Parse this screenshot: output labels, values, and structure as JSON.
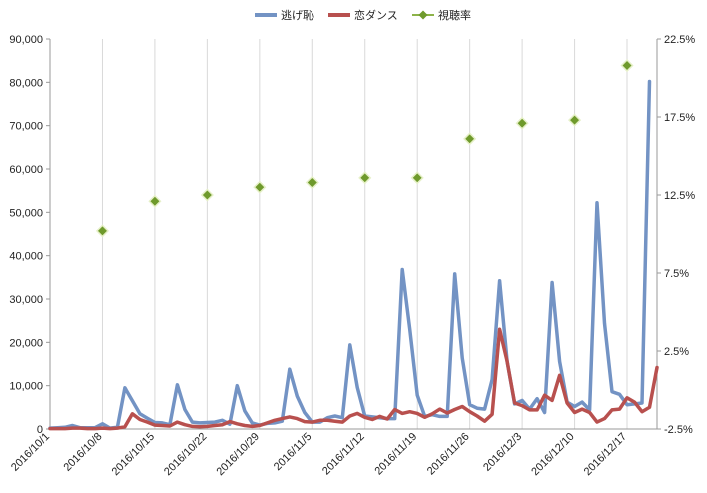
{
  "chart_data": {
    "type": "line",
    "legend_position": "top",
    "grid": {
      "x": true,
      "y": false
    },
    "legend": [
      {
        "name": "逃げ恥",
        "color": "#7393c4",
        "marker": "line"
      },
      {
        "name": "恋ダンス",
        "color": "#b8504e",
        "marker": "line"
      },
      {
        "name": "視聴率",
        "color": "#6f9a2c",
        "marker": "diamond"
      }
    ],
    "x_ticks": [
      "2016/10/1",
      "2016/10/8",
      "2016/10/15",
      "2016/10/22",
      "2016/10/29",
      "2016/11/5",
      "2016/11/12",
      "2016/11/19",
      "2016/11/26",
      "2016/12/3",
      "2016/12/10",
      "2016/12/17"
    ],
    "x_range_days": [
      0,
      81
    ],
    "left_axis": {
      "ylim": [
        0,
        90000
      ],
      "ticks": [
        "0",
        "10,000",
        "20,000",
        "30,000",
        "40,000",
        "50,000",
        "60,000",
        "70,000",
        "80,000",
        "90,000"
      ]
    },
    "right_axis": {
      "ylim": [
        -2.5,
        22.5
      ],
      "ticks": [
        "-2.5%",
        "2.5%",
        "7.5%",
        "12.5%",
        "17.5%",
        "22.5%"
      ]
    },
    "series": [
      {
        "name": "逃げ恥",
        "axis": "left",
        "color": "#7393c4",
        "x": [
          0,
          1,
          2,
          3,
          4,
          5,
          6,
          7,
          8,
          9,
          10,
          11,
          12,
          13,
          14,
          15,
          16,
          17,
          18,
          19,
          20,
          21,
          22,
          23,
          24,
          25,
          26,
          27,
          28,
          29,
          30,
          31,
          32,
          33,
          34,
          35,
          36,
          37,
          38,
          39,
          40,
          41,
          42,
          43,
          44,
          45,
          46,
          47,
          48,
          49,
          50,
          51,
          52,
          53,
          54,
          55,
          56,
          57,
          58,
          59,
          60,
          61,
          62,
          63,
          64,
          65,
          66,
          67,
          68,
          69,
          70,
          71,
          72,
          73,
          74,
          75,
          76,
          77,
          78,
          79,
          80
        ],
        "values": [
          200,
          300,
          400,
          800,
          300,
          300,
          300,
          1200,
          200,
          400,
          9500,
          6500,
          3500,
          2500,
          1500,
          1400,
          1000,
          10200,
          4500,
          1600,
          1400,
          1500,
          1600,
          2000,
          1100,
          10000,
          4200,
          1400,
          900,
          1300,
          1400,
          1800,
          13800,
          7600,
          3800,
          1600,
          1600,
          2600,
          3000,
          2600,
          19400,
          9600,
          3000,
          2800,
          2600,
          2400,
          2400,
          36800,
          23000,
          7800,
          2900,
          3300,
          2900,
          2900,
          35800,
          16400,
          5600,
          4800,
          4600,
          11400,
          34200,
          15600,
          5800,
          6600,
          4600,
          7000,
          3800,
          33800,
          15600,
          6200,
          5200,
          6200,
          4400,
          52200,
          24400,
          8600,
          8000,
          5600,
          5800,
          6000,
          80200
        ]
      },
      {
        "name": "恋ダンス",
        "axis": "left",
        "color": "#b8504e",
        "x": [
          0,
          1,
          2,
          3,
          4,
          5,
          6,
          7,
          8,
          9,
          10,
          11,
          12,
          13,
          14,
          15,
          16,
          17,
          18,
          19,
          20,
          21,
          22,
          23,
          24,
          25,
          26,
          27,
          28,
          29,
          30,
          31,
          32,
          33,
          34,
          35,
          36,
          37,
          38,
          39,
          40,
          41,
          42,
          43,
          44,
          45,
          46,
          47,
          48,
          49,
          50,
          51,
          52,
          53,
          54,
          55,
          56,
          57,
          58,
          59,
          60,
          61,
          62,
          63,
          64,
          65,
          66,
          67,
          68,
          69,
          70,
          71,
          72,
          73,
          74,
          75,
          76,
          77,
          78,
          79,
          80,
          81
        ],
        "values": [
          100,
          100,
          100,
          200,
          200,
          100,
          100,
          200,
          100,
          200,
          500,
          3500,
          2200,
          1600,
          900,
          800,
          700,
          1600,
          1000,
          600,
          500,
          600,
          800,
          1000,
          1700,
          1200,
          800,
          600,
          800,
          1400,
          2000,
          2400,
          2800,
          2400,
          1700,
          1600,
          2000,
          2000,
          1800,
          1600,
          3000,
          3600,
          2700,
          2200,
          2900,
          2300,
          4500,
          3600,
          4000,
          3600,
          2700,
          3500,
          4600,
          3700,
          4500,
          5200,
          4000,
          3000,
          1800,
          3400,
          23000,
          15600,
          6000,
          5400,
          4400,
          4400,
          7800,
          6600,
          12400,
          6000,
          3800,
          4600,
          3800,
          1600,
          2400,
          4400,
          4600,
          7200,
          6200,
          4000,
          5000,
          14200
        ]
      },
      {
        "name": "視聴率",
        "axis": "right",
        "color": "#6f9a2c",
        "type": "scatter",
        "x": [
          7,
          14,
          21,
          28,
          35,
          42,
          49,
          56,
          63,
          70,
          77
        ],
        "values": [
          10.2,
          12.1,
          12.5,
          13.0,
          13.3,
          13.6,
          13.6,
          16.1,
          17.1,
          17.3,
          20.8
        ]
      }
    ]
  }
}
